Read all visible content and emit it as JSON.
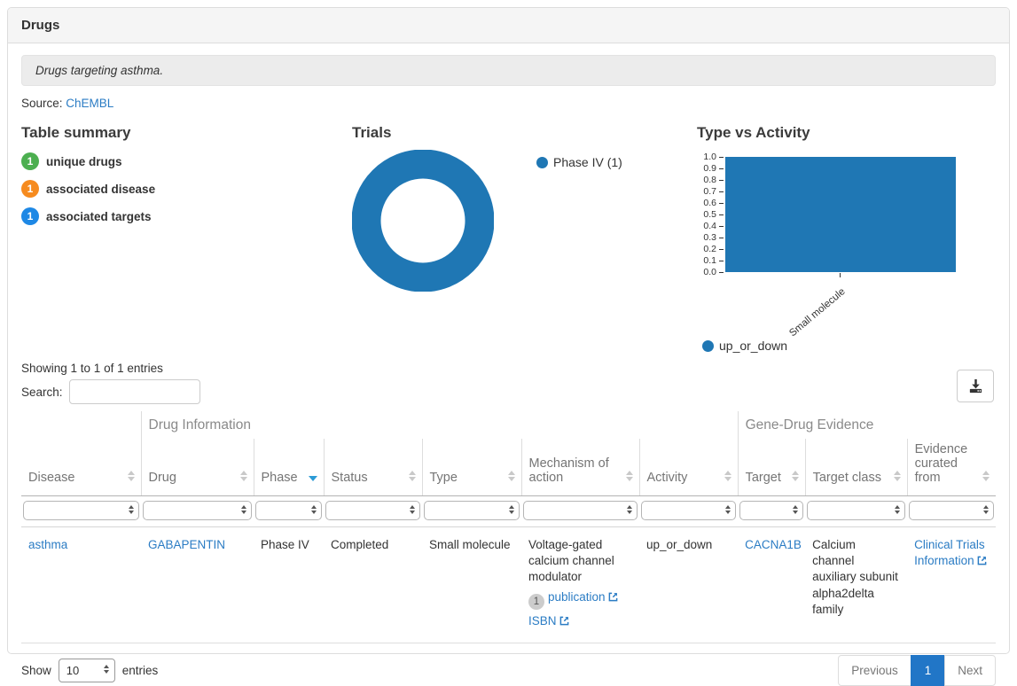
{
  "panel": {
    "title": "Drugs"
  },
  "description": "Drugs targeting asthma.",
  "source": {
    "label": "Source:",
    "link": "ChEMBL"
  },
  "summary": {
    "title": "Table summary",
    "items": [
      {
        "count": "1",
        "label": "unique drugs",
        "color": "#4caf50"
      },
      {
        "count": "1",
        "label": "associated disease",
        "color": "#f68b1f"
      },
      {
        "count": "1",
        "label": "associated targets",
        "color": "#1e88e5"
      }
    ]
  },
  "chart_data": [
    {
      "type": "pie",
      "title": "Trials",
      "labels": [
        "Phase IV"
      ],
      "values": [
        1
      ],
      "legend": [
        "Phase IV (1)"
      ],
      "legend_position": "right",
      "donut": true,
      "color": "#1f77b4"
    },
    {
      "type": "bar",
      "title": "Type vs Activity",
      "categories": [
        "Small molecule"
      ],
      "series": [
        {
          "name": "up_or_down",
          "values": [
            1.0
          ]
        }
      ],
      "ylim": [
        0.0,
        1.0
      ],
      "yticks": [
        "1.0",
        "0.9",
        "0.8",
        "0.7",
        "0.6",
        "0.5",
        "0.4",
        "0.3",
        "0.2",
        "0.1",
        "0.0"
      ],
      "legend_position": "bottom",
      "color": "#1f77b4"
    }
  ],
  "table": {
    "info": "Showing 1 to 1 of 1 entries",
    "search_label": "Search:",
    "groups": [
      {
        "label": "",
        "span": 1
      },
      {
        "label": "Drug Information",
        "span": 6
      },
      {
        "label": "Gene-Drug Evidence",
        "span": 3
      }
    ],
    "columns": [
      {
        "label": "Disease",
        "sort": "both"
      },
      {
        "label": "Drug",
        "sort": "both"
      },
      {
        "label": "Phase",
        "sort": "desc"
      },
      {
        "label": "Status",
        "sort": "both"
      },
      {
        "label": "Type",
        "sort": "both"
      },
      {
        "label": "Mechanism of action",
        "sort": "both"
      },
      {
        "label": "Activity",
        "sort": "both"
      },
      {
        "label": "Target",
        "sort": "both"
      },
      {
        "label": "Target class",
        "sort": "both"
      },
      {
        "label": "Evidence curated from",
        "sort": "both"
      }
    ],
    "row": {
      "cells": [
        {
          "name": "disease",
          "type": "link",
          "text": "asthma"
        },
        {
          "name": "drug",
          "type": "link",
          "text": "GABAPENTIN"
        },
        {
          "name": "phase",
          "type": "text",
          "text": "Phase IV"
        },
        {
          "name": "status",
          "type": "text",
          "text": "Completed"
        },
        {
          "name": "type",
          "type": "text",
          "text": "Small molecule"
        },
        {
          "name": "mechanism-of-action",
          "type": "mechanism",
          "text": "Voltage-gated calcium channel modulator",
          "badge": "1",
          "links": [
            {
              "text": "publication",
              "ext": true
            },
            {
              "text": "ISBN",
              "ext": true
            }
          ]
        },
        {
          "name": "activity",
          "type": "text",
          "text": "up_or_down"
        },
        {
          "name": "target",
          "type": "link",
          "text": "CACNA1B"
        },
        {
          "name": "target-class",
          "type": "text",
          "text": "Calcium channel auxiliary subunit alpha2delta family"
        },
        {
          "name": "evidence-curated-from",
          "type": "link",
          "text": "Clinical Trials Information",
          "ext": true
        }
      ]
    },
    "footer": {
      "show_label": "Show",
      "page_size": "10",
      "entries_label": "entries",
      "pagination": [
        {
          "label": "Previous",
          "state": "disabled"
        },
        {
          "label": "1",
          "state": "active"
        },
        {
          "label": "Next",
          "state": "disabled"
        }
      ],
      "active_color": "#2176c7"
    }
  }
}
